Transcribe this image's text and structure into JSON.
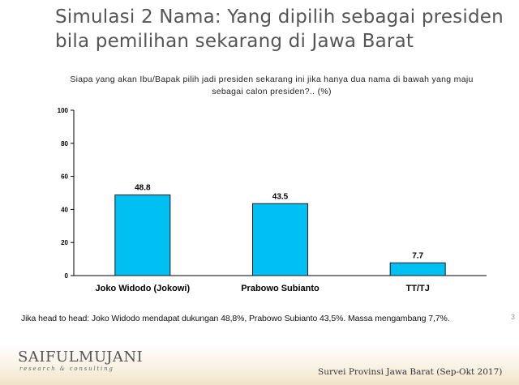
{
  "title": {
    "line1": "Simulasi 2 Nama: Yang dipilih sebagai presiden",
    "line2": "bila pemilihan sekarang di Jawa Barat"
  },
  "question": {
    "line1": "Siapa yang akan Ibu/Bapak pilih jadi presiden sekarang ini jika hanya dua nama di bawah yang maju",
    "line2": "sebagai calon presiden?.. (%)"
  },
  "chart_data": {
    "type": "bar",
    "categories": [
      "Joko Widodo (Jokowi)",
      "Prabowo Subianto",
      "TT/TJ"
    ],
    "values": [
      48.8,
      43.5,
      7.7
    ],
    "value_labels": [
      "48.8",
      "43.5",
      "7.7"
    ],
    "yticks": [
      0,
      20,
      40,
      60,
      80,
      100
    ],
    "ylim": [
      0,
      100
    ],
    "bar_color": "#00bff3",
    "grid": false,
    "legend": "none"
  },
  "note": "Jika head to head: Joko Widodo mendapat dukungan 48,8%, Prabowo Subianto 43,5%. Massa mengambang 7,7%.",
  "footer": {
    "logo_name": "SAIFULMUJANI",
    "logo_sub": "research & consulting",
    "source": "Survei Provinsi Jawa Barat (Sep-Okt 2017)",
    "edge_mark": "3"
  }
}
